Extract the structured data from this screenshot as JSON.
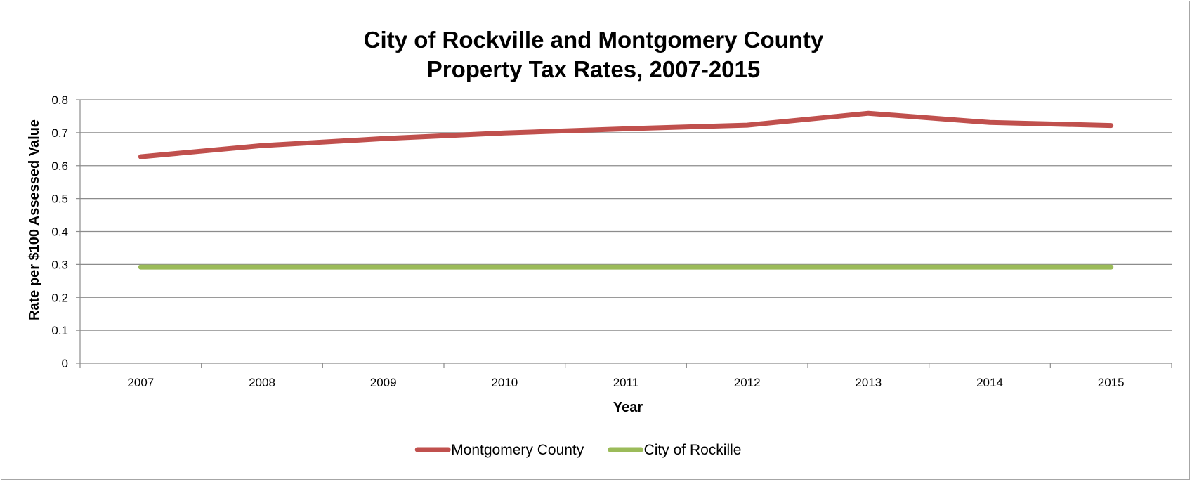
{
  "chart_data": {
    "type": "line",
    "title": [
      "City of Rockville and Montgomery County",
      "Property Tax Rates, 2007-2015"
    ],
    "xlabel": "Year",
    "ylabel": "Rate per $100 Assessed Value",
    "categories": [
      "2007",
      "2008",
      "2009",
      "2010",
      "2011",
      "2012",
      "2013",
      "2014",
      "2015"
    ],
    "ylim": [
      0,
      0.8
    ],
    "yticks": [
      0,
      0.1,
      0.2,
      0.3,
      0.4,
      0.5,
      0.6,
      0.7,
      0.8
    ],
    "ytick_labels": [
      "0",
      "0.1",
      "0.2",
      "0.3",
      "0.4",
      "0.5",
      "0.6",
      "0.7",
      "0.8"
    ],
    "grid": true,
    "legend_position": "bottom",
    "series": [
      {
        "name": "Montgomery County",
        "color": "#c0504d",
        "values": [
          0.627,
          0.661,
          0.682,
          0.699,
          0.712,
          0.723,
          0.759,
          0.731,
          0.722
        ]
      },
      {
        "name": "City of Rockille",
        "color": "#9bbb59",
        "values": [
          0.292,
          0.292,
          0.292,
          0.292,
          0.292,
          0.292,
          0.292,
          0.292,
          0.292
        ]
      }
    ]
  }
}
